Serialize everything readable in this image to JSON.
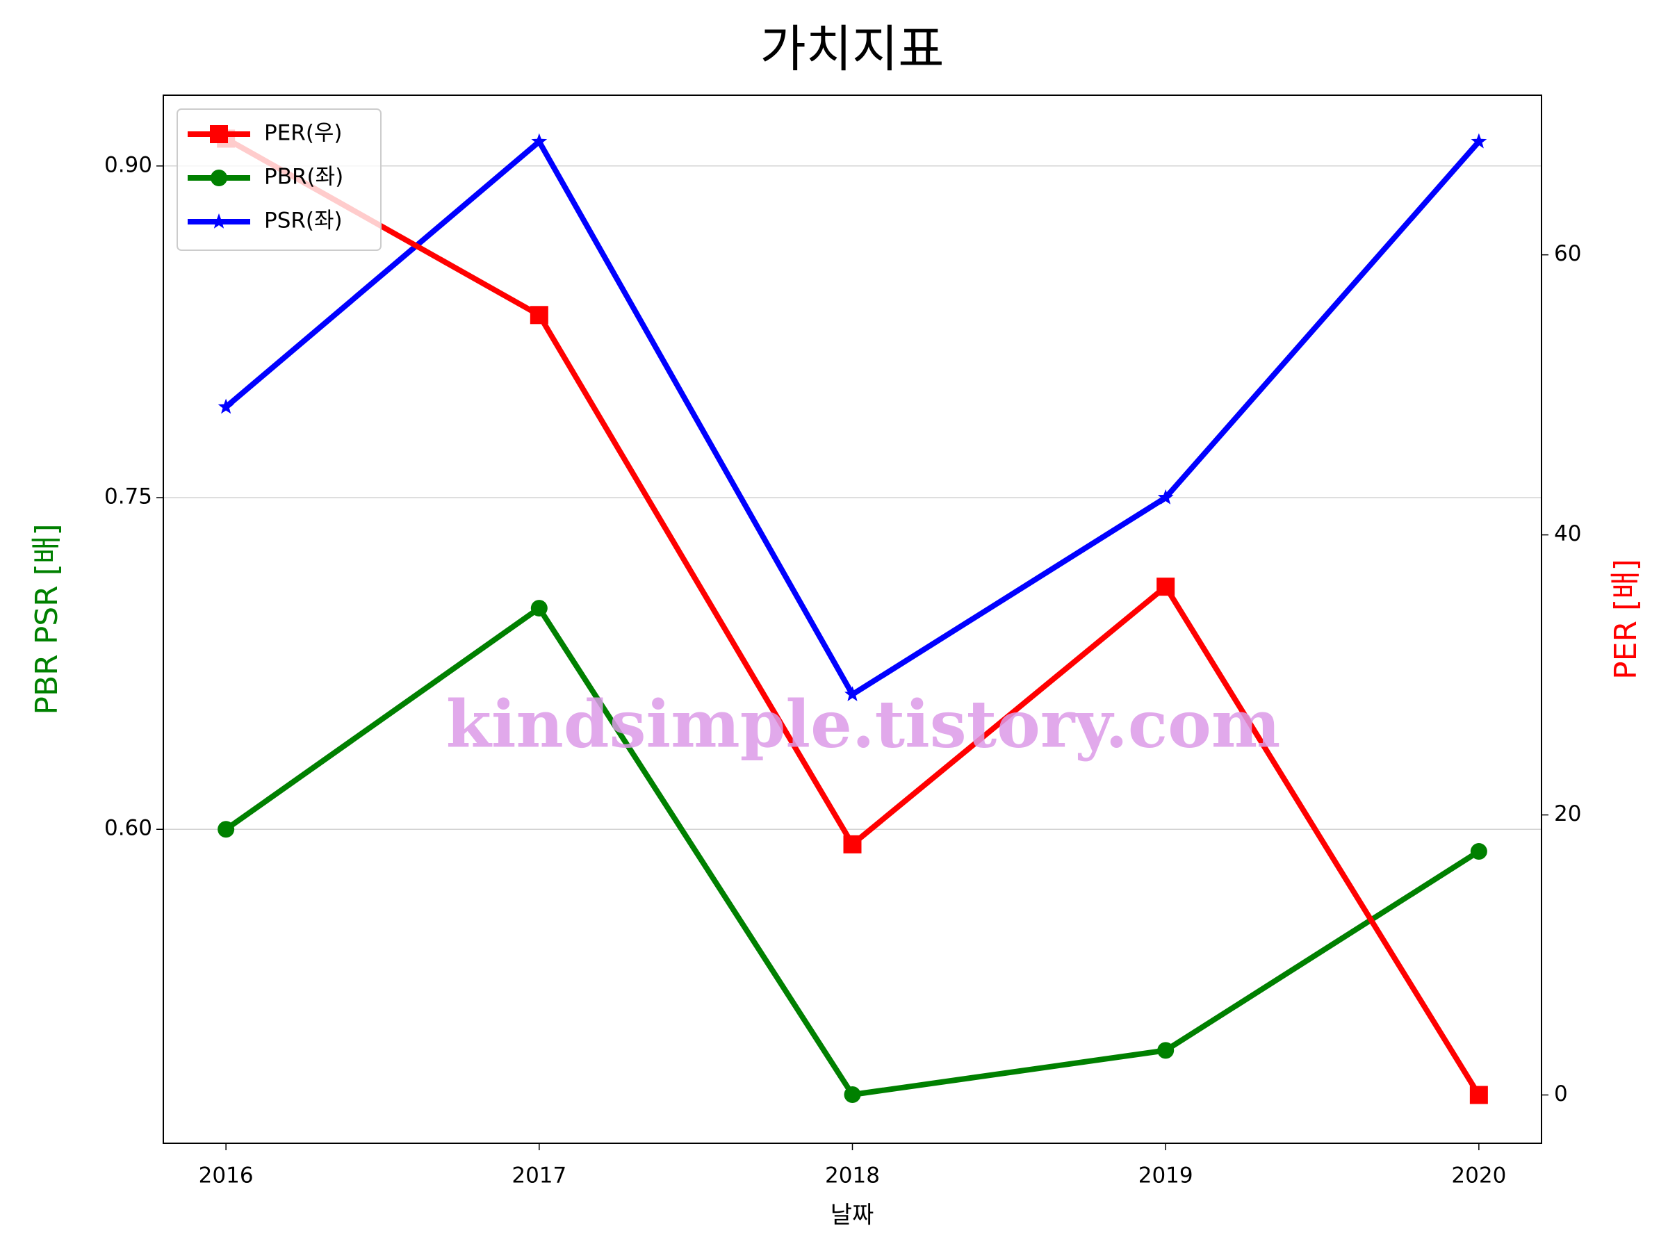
{
  "chart_data": {
    "type": "line",
    "title": "가치지표",
    "x_label": "날짜",
    "y_label": "PBR PSR [배]",
    "y2_label": "PER [배]",
    "watermark": "kindsimple.tistory.com",
    "x": [
      2016,
      2017,
      2018,
      2019,
      2020
    ],
    "xlim": [
      2015.8,
      2020.2
    ],
    "xticks": [
      2016,
      2017,
      2018,
      2019,
      2020
    ],
    "ylim": [
      0.458,
      0.932
    ],
    "yticks": [
      {
        "value": 0.6,
        "label": "0.60"
      },
      {
        "value": 0.75,
        "label": "0.75"
      },
      {
        "value": 0.9,
        "label": "0.90"
      }
    ],
    "y2lim": [
      -3.45,
      71.4
    ],
    "y2ticks": [
      0,
      20,
      40,
      60
    ],
    "grid": true,
    "legend": "upper left",
    "series": [
      {
        "name": "PER(우)",
        "color": "#ff0000",
        "marker": "square",
        "axis": "y2",
        "values": [
          68.3,
          55.7,
          17.9,
          36.3,
          0
        ]
      },
      {
        "name": "PBR(좌)",
        "color": "#008000",
        "marker": "circle",
        "values": [
          0.6,
          0.7,
          0.48,
          0.5,
          0.59
        ]
      },
      {
        "name": "PSR(좌)",
        "color": "#0000ff",
        "marker": "star",
        "values": [
          0.791,
          0.911,
          0.661,
          0.75,
          0.911
        ]
      }
    ]
  }
}
